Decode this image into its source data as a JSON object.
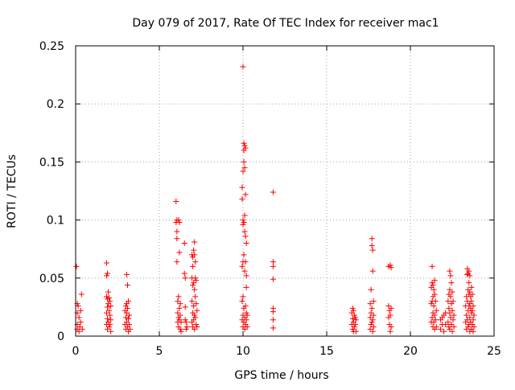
{
  "chart_data": {
    "type": "scatter",
    "title": "Day 079 of 2017, Rate Of TEC Index for receiver mac1",
    "xlabel": "GPS time / hours",
    "ylabel": "ROTI / TECUs",
    "xlim": [
      0,
      25
    ],
    "ylim": [
      0,
      0.25
    ],
    "xticks": [
      0,
      5,
      10,
      15,
      20,
      25
    ],
    "yticks": [
      0,
      0.05,
      0.1,
      0.15,
      0.2,
      0.25
    ],
    "xtick_labels": [
      "0",
      "5",
      "10",
      "15",
      "20",
      "25"
    ],
    "ytick_labels": [
      "0",
      "0.05",
      "0.1",
      "0.15",
      "0.2",
      "0.25"
    ],
    "grid": true,
    "legend": "none",
    "marker": "+",
    "color": "#ff0000",
    "series": [
      {
        "points": [
          [
            0.05,
            0.06
          ],
          [
            0.1,
            0.028
          ],
          [
            0.1,
            0.02
          ],
          [
            0.1,
            0.01
          ],
          [
            0.1,
            0.006
          ],
          [
            0.15,
            0.026
          ],
          [
            0.2,
            0.016
          ],
          [
            0.2,
            0.004
          ],
          [
            0.25,
            0.008
          ],
          [
            0.3,
            0.022
          ],
          [
            0.3,
            0.012
          ],
          [
            0.35,
            0.036
          ],
          [
            0.4,
            0.006
          ],
          [
            1.85,
            0.063
          ],
          [
            1.85,
            0.052
          ],
          [
            1.85,
            0.034
          ],
          [
            1.85,
            0.02
          ],
          [
            1.85,
            0.01
          ],
          [
            1.9,
            0.054
          ],
          [
            1.9,
            0.032
          ],
          [
            1.9,
            0.025
          ],
          [
            1.9,
            0.015
          ],
          [
            1.9,
            0.006
          ],
          [
            1.95,
            0.038
          ],
          [
            1.95,
            0.028
          ],
          [
            1.95,
            0.012
          ],
          [
            2.0,
            0.033
          ],
          [
            2.0,
            0.022
          ],
          [
            2.0,
            0.008
          ],
          [
            2.05,
            0.03
          ],
          [
            2.05,
            0.018
          ],
          [
            2.05,
            0.01
          ],
          [
            2.1,
            0.026
          ],
          [
            2.1,
            0.014
          ],
          [
            2.1,
            0.004
          ],
          [
            2.95,
            0.022
          ],
          [
            2.95,
            0.01
          ],
          [
            3.0,
            0.026
          ],
          [
            3.0,
            0.016
          ],
          [
            3.0,
            0.006
          ],
          [
            3.05,
            0.053
          ],
          [
            3.05,
            0.028
          ],
          [
            3.05,
            0.02
          ],
          [
            3.05,
            0.012
          ],
          [
            3.1,
            0.044
          ],
          [
            3.1,
            0.024
          ],
          [
            3.1,
            0.008
          ],
          [
            3.15,
            0.03
          ],
          [
            3.15,
            0.015
          ],
          [
            3.15,
            0.004
          ],
          [
            3.2,
            0.018
          ],
          [
            3.2,
            0.01
          ],
          [
            3.25,
            0.006
          ],
          [
            6.0,
            0.116
          ],
          [
            6.0,
            0.098
          ],
          [
            6.05,
            0.1
          ],
          [
            6.05,
            0.09
          ],
          [
            6.05,
            0.084
          ],
          [
            6.05,
            0.064
          ],
          [
            6.1,
            0.03
          ],
          [
            6.1,
            0.02
          ],
          [
            6.1,
            0.012
          ],
          [
            6.15,
            0.1
          ],
          [
            6.15,
            0.034
          ],
          [
            6.15,
            0.016
          ],
          [
            6.15,
            0.008
          ],
          [
            6.2,
            0.098
          ],
          [
            6.2,
            0.072
          ],
          [
            6.2,
            0.024
          ],
          [
            6.2,
            0.014
          ],
          [
            6.25,
            0.028
          ],
          [
            6.25,
            0.018
          ],
          [
            6.25,
            0.006
          ],
          [
            6.3,
            0.012
          ],
          [
            6.3,
            0.004
          ],
          [
            6.5,
            0.08
          ],
          [
            6.5,
            0.054
          ],
          [
            6.55,
            0.05
          ],
          [
            6.55,
            0.025
          ],
          [
            6.55,
            0.014
          ],
          [
            6.6,
            0.012
          ],
          [
            6.6,
            0.006
          ],
          [
            6.65,
            0.008
          ],
          [
            6.95,
            0.07
          ],
          [
            6.95,
            0.05
          ],
          [
            6.95,
            0.03
          ],
          [
            6.95,
            0.012
          ],
          [
            7.0,
            0.068
          ],
          [
            7.0,
            0.06
          ],
          [
            7.0,
            0.044
          ],
          [
            7.0,
            0.02
          ],
          [
            7.0,
            0.008
          ],
          [
            7.05,
            0.074
          ],
          [
            7.05,
            0.046
          ],
          [
            7.05,
            0.026
          ],
          [
            7.05,
            0.014
          ],
          [
            7.1,
            0.081
          ],
          [
            7.1,
            0.07
          ],
          [
            7.1,
            0.04
          ],
          [
            7.1,
            0.018
          ],
          [
            7.1,
            0.006
          ],
          [
            7.15,
            0.064
          ],
          [
            7.15,
            0.05
          ],
          [
            7.15,
            0.034
          ],
          [
            7.15,
            0.016
          ],
          [
            7.2,
            0.048
          ],
          [
            7.2,
            0.028
          ],
          [
            7.2,
            0.01
          ],
          [
            7.25,
            0.022
          ],
          [
            7.25,
            0.008
          ],
          [
            9.95,
            0.128
          ],
          [
            9.95,
            0.118
          ],
          [
            9.95,
            0.06
          ],
          [
            9.95,
            0.03
          ],
          [
            9.95,
            0.014
          ],
          [
            10.0,
            0.232
          ],
          [
            10.0,
            0.142
          ],
          [
            10.0,
            0.1
          ],
          [
            10.0,
            0.096
          ],
          [
            10.0,
            0.064
          ],
          [
            10.0,
            0.034
          ],
          [
            10.0,
            0.018
          ],
          [
            10.0,
            0.008
          ],
          [
            10.05,
            0.166
          ],
          [
            10.05,
            0.16
          ],
          [
            10.05,
            0.15
          ],
          [
            10.05,
            0.098
          ],
          [
            10.05,
            0.07
          ],
          [
            10.05,
            0.024
          ],
          [
            10.05,
            0.012
          ],
          [
            10.1,
            0.164
          ],
          [
            10.1,
            0.145
          ],
          [
            10.1,
            0.104
          ],
          [
            10.1,
            0.09
          ],
          [
            10.1,
            0.056
          ],
          [
            10.1,
            0.016
          ],
          [
            10.1,
            0.006
          ],
          [
            10.15,
            0.162
          ],
          [
            10.15,
            0.122
          ],
          [
            10.15,
            0.086
          ],
          [
            10.15,
            0.064
          ],
          [
            10.15,
            0.026
          ],
          [
            10.15,
            0.01
          ],
          [
            10.2,
            0.08
          ],
          [
            10.2,
            0.052
          ],
          [
            10.2,
            0.042
          ],
          [
            10.2,
            0.02
          ],
          [
            10.2,
            0.014
          ],
          [
            10.25,
            0.018
          ],
          [
            10.25,
            0.008
          ],
          [
            11.8,
            0.124
          ],
          [
            11.8,
            0.064
          ],
          [
            11.8,
            0.06
          ],
          [
            11.8,
            0.049
          ],
          [
            11.8,
            0.024
          ],
          [
            11.8,
            0.021
          ],
          [
            11.8,
            0.014
          ],
          [
            11.8,
            0.007
          ],
          [
            16.5,
            0.02
          ],
          [
            16.5,
            0.01
          ],
          [
            16.55,
            0.024
          ],
          [
            16.55,
            0.015
          ],
          [
            16.55,
            0.006
          ],
          [
            16.6,
            0.022
          ],
          [
            16.6,
            0.012
          ],
          [
            16.6,
            0.004
          ],
          [
            16.65,
            0.018
          ],
          [
            16.65,
            0.008
          ],
          [
            16.7,
            0.016
          ],
          [
            16.7,
            0.01
          ],
          [
            16.75,
            0.014
          ],
          [
            16.75,
            0.004
          ],
          [
            17.6,
            0.028
          ],
          [
            17.6,
            0.016
          ],
          [
            17.6,
            0.006
          ],
          [
            17.65,
            0.04
          ],
          [
            17.65,
            0.02
          ],
          [
            17.65,
            0.01
          ],
          [
            17.7,
            0.084
          ],
          [
            17.7,
            0.078
          ],
          [
            17.7,
            0.024
          ],
          [
            17.7,
            0.012
          ],
          [
            17.75,
            0.074
          ],
          [
            17.75,
            0.056
          ],
          [
            17.75,
            0.014
          ],
          [
            17.75,
            0.004
          ],
          [
            17.8,
            0.03
          ],
          [
            17.8,
            0.018
          ],
          [
            17.8,
            0.008
          ],
          [
            18.7,
            0.06
          ],
          [
            18.7,
            0.026
          ],
          [
            18.7,
            0.016
          ],
          [
            18.75,
            0.022
          ],
          [
            18.75,
            0.01
          ],
          [
            18.8,
            0.061
          ],
          [
            18.8,
            0.018
          ],
          [
            18.8,
            0.004
          ],
          [
            18.85,
            0.059
          ],
          [
            18.85,
            0.024
          ],
          [
            18.85,
            0.008
          ],
          [
            21.25,
            0.042
          ],
          [
            21.25,
            0.028
          ],
          [
            21.25,
            0.012
          ],
          [
            21.3,
            0.06
          ],
          [
            21.3,
            0.046
          ],
          [
            21.3,
            0.03
          ],
          [
            21.3,
            0.016
          ],
          [
            21.35,
            0.044
          ],
          [
            21.35,
            0.034
          ],
          [
            21.35,
            0.02
          ],
          [
            21.35,
            0.008
          ],
          [
            21.4,
            0.04
          ],
          [
            21.4,
            0.026
          ],
          [
            21.4,
            0.012
          ],
          [
            21.45,
            0.048
          ],
          [
            21.45,
            0.036
          ],
          [
            21.45,
            0.018
          ],
          [
            21.45,
            0.006
          ],
          [
            21.5,
            0.03
          ],
          [
            21.5,
            0.014
          ],
          [
            21.55,
            0.022
          ],
          [
            21.55,
            0.008
          ],
          [
            21.8,
            0.014
          ],
          [
            21.8,
            0.006
          ],
          [
            21.9,
            0.016
          ],
          [
            21.9,
            0.01
          ],
          [
            22.0,
            0.018
          ],
          [
            22.0,
            0.004
          ],
          [
            22.1,
            0.02
          ],
          [
            22.1,
            0.01
          ],
          [
            22.25,
            0.03
          ],
          [
            22.25,
            0.012
          ],
          [
            22.3,
            0.036
          ],
          [
            22.3,
            0.024
          ],
          [
            22.3,
            0.008
          ],
          [
            22.35,
            0.056
          ],
          [
            22.35,
            0.04
          ],
          [
            22.35,
            0.02
          ],
          [
            22.35,
            0.006
          ],
          [
            22.4,
            0.052
          ],
          [
            22.4,
            0.034
          ],
          [
            22.4,
            0.016
          ],
          [
            22.45,
            0.046
          ],
          [
            22.45,
            0.028
          ],
          [
            22.45,
            0.01
          ],
          [
            22.5,
            0.038
          ],
          [
            22.5,
            0.022
          ],
          [
            22.5,
            0.004
          ],
          [
            22.55,
            0.03
          ],
          [
            22.55,
            0.014
          ],
          [
            22.6,
            0.018
          ],
          [
            22.6,
            0.008
          ],
          [
            23.3,
            0.026
          ],
          [
            23.3,
            0.012
          ],
          [
            23.35,
            0.034
          ],
          [
            23.35,
            0.018
          ],
          [
            23.35,
            0.006
          ],
          [
            23.4,
            0.058
          ],
          [
            23.4,
            0.053
          ],
          [
            23.4,
            0.03
          ],
          [
            23.4,
            0.014
          ],
          [
            23.45,
            0.054
          ],
          [
            23.45,
            0.04
          ],
          [
            23.45,
            0.022
          ],
          [
            23.45,
            0.008
          ],
          [
            23.5,
            0.056
          ],
          [
            23.5,
            0.046
          ],
          [
            23.5,
            0.036
          ],
          [
            23.5,
            0.026
          ],
          [
            23.5,
            0.01
          ],
          [
            23.55,
            0.052
          ],
          [
            23.55,
            0.038
          ],
          [
            23.55,
            0.028
          ],
          [
            23.55,
            0.016
          ],
          [
            23.55,
            0.004
          ],
          [
            23.6,
            0.034
          ],
          [
            23.6,
            0.024
          ],
          [
            23.6,
            0.012
          ],
          [
            23.65,
            0.042
          ],
          [
            23.65,
            0.03
          ],
          [
            23.65,
            0.02
          ],
          [
            23.65,
            0.006
          ],
          [
            23.7,
            0.036
          ],
          [
            23.7,
            0.022
          ],
          [
            23.7,
            0.01
          ],
          [
            23.75,
            0.026
          ],
          [
            23.75,
            0.014
          ],
          [
            23.75,
            0.004
          ],
          [
            23.8,
            0.018
          ],
          [
            23.8,
            0.008
          ]
        ]
      }
    ]
  }
}
